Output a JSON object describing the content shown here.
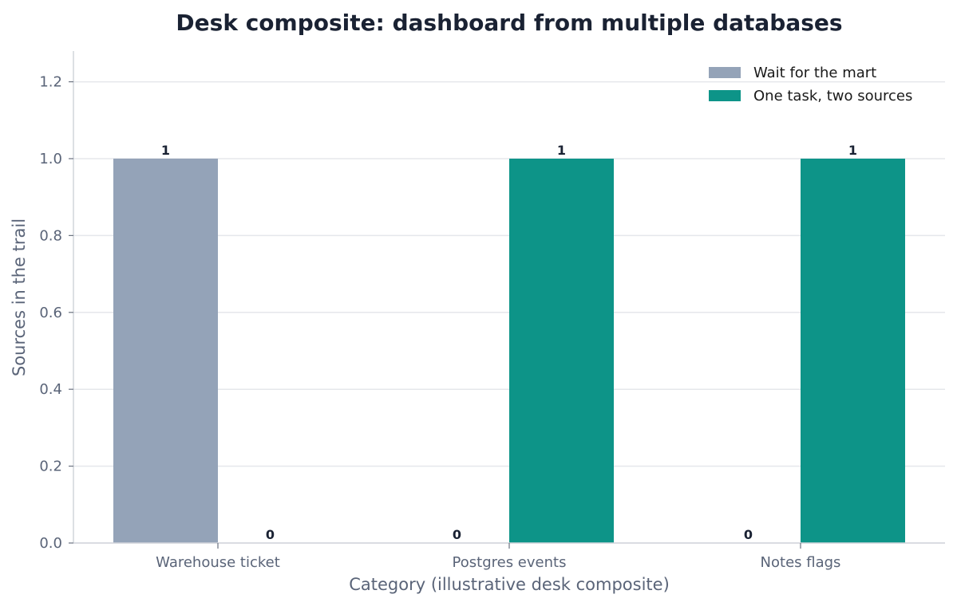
{
  "chart_data": {
    "type": "bar",
    "title": "Desk composite: dashboard from multiple databases",
    "xlabel": "Category (illustrative desk composite)",
    "ylabel": "Sources in the trail",
    "categories": [
      "Warehouse ticket",
      "Postgres events",
      "Notes flags"
    ],
    "series": [
      {
        "name": "Wait for the mart",
        "values": [
          1,
          0,
          0
        ],
        "color": "#94a3b8"
      },
      {
        "name": "One task, two sources",
        "values": [
          0,
          1,
          1
        ],
        "color": "#0d9488"
      }
    ],
    "ylim": [
      0,
      1.28
    ],
    "yticks": [
      "0.0",
      "0.2",
      "0.4",
      "0.6",
      "0.8",
      "1.0",
      "1.2"
    ],
    "data_labels": [
      [
        "1",
        "0",
        "0"
      ],
      [
        "0",
        "1",
        "1"
      ]
    ],
    "grid": true,
    "legend_position": "top-right",
    "colors": {
      "grid": "#e5e7eb",
      "axis": "#d1d5db",
      "text": "#5a6478",
      "title": "#1a2233"
    }
  }
}
